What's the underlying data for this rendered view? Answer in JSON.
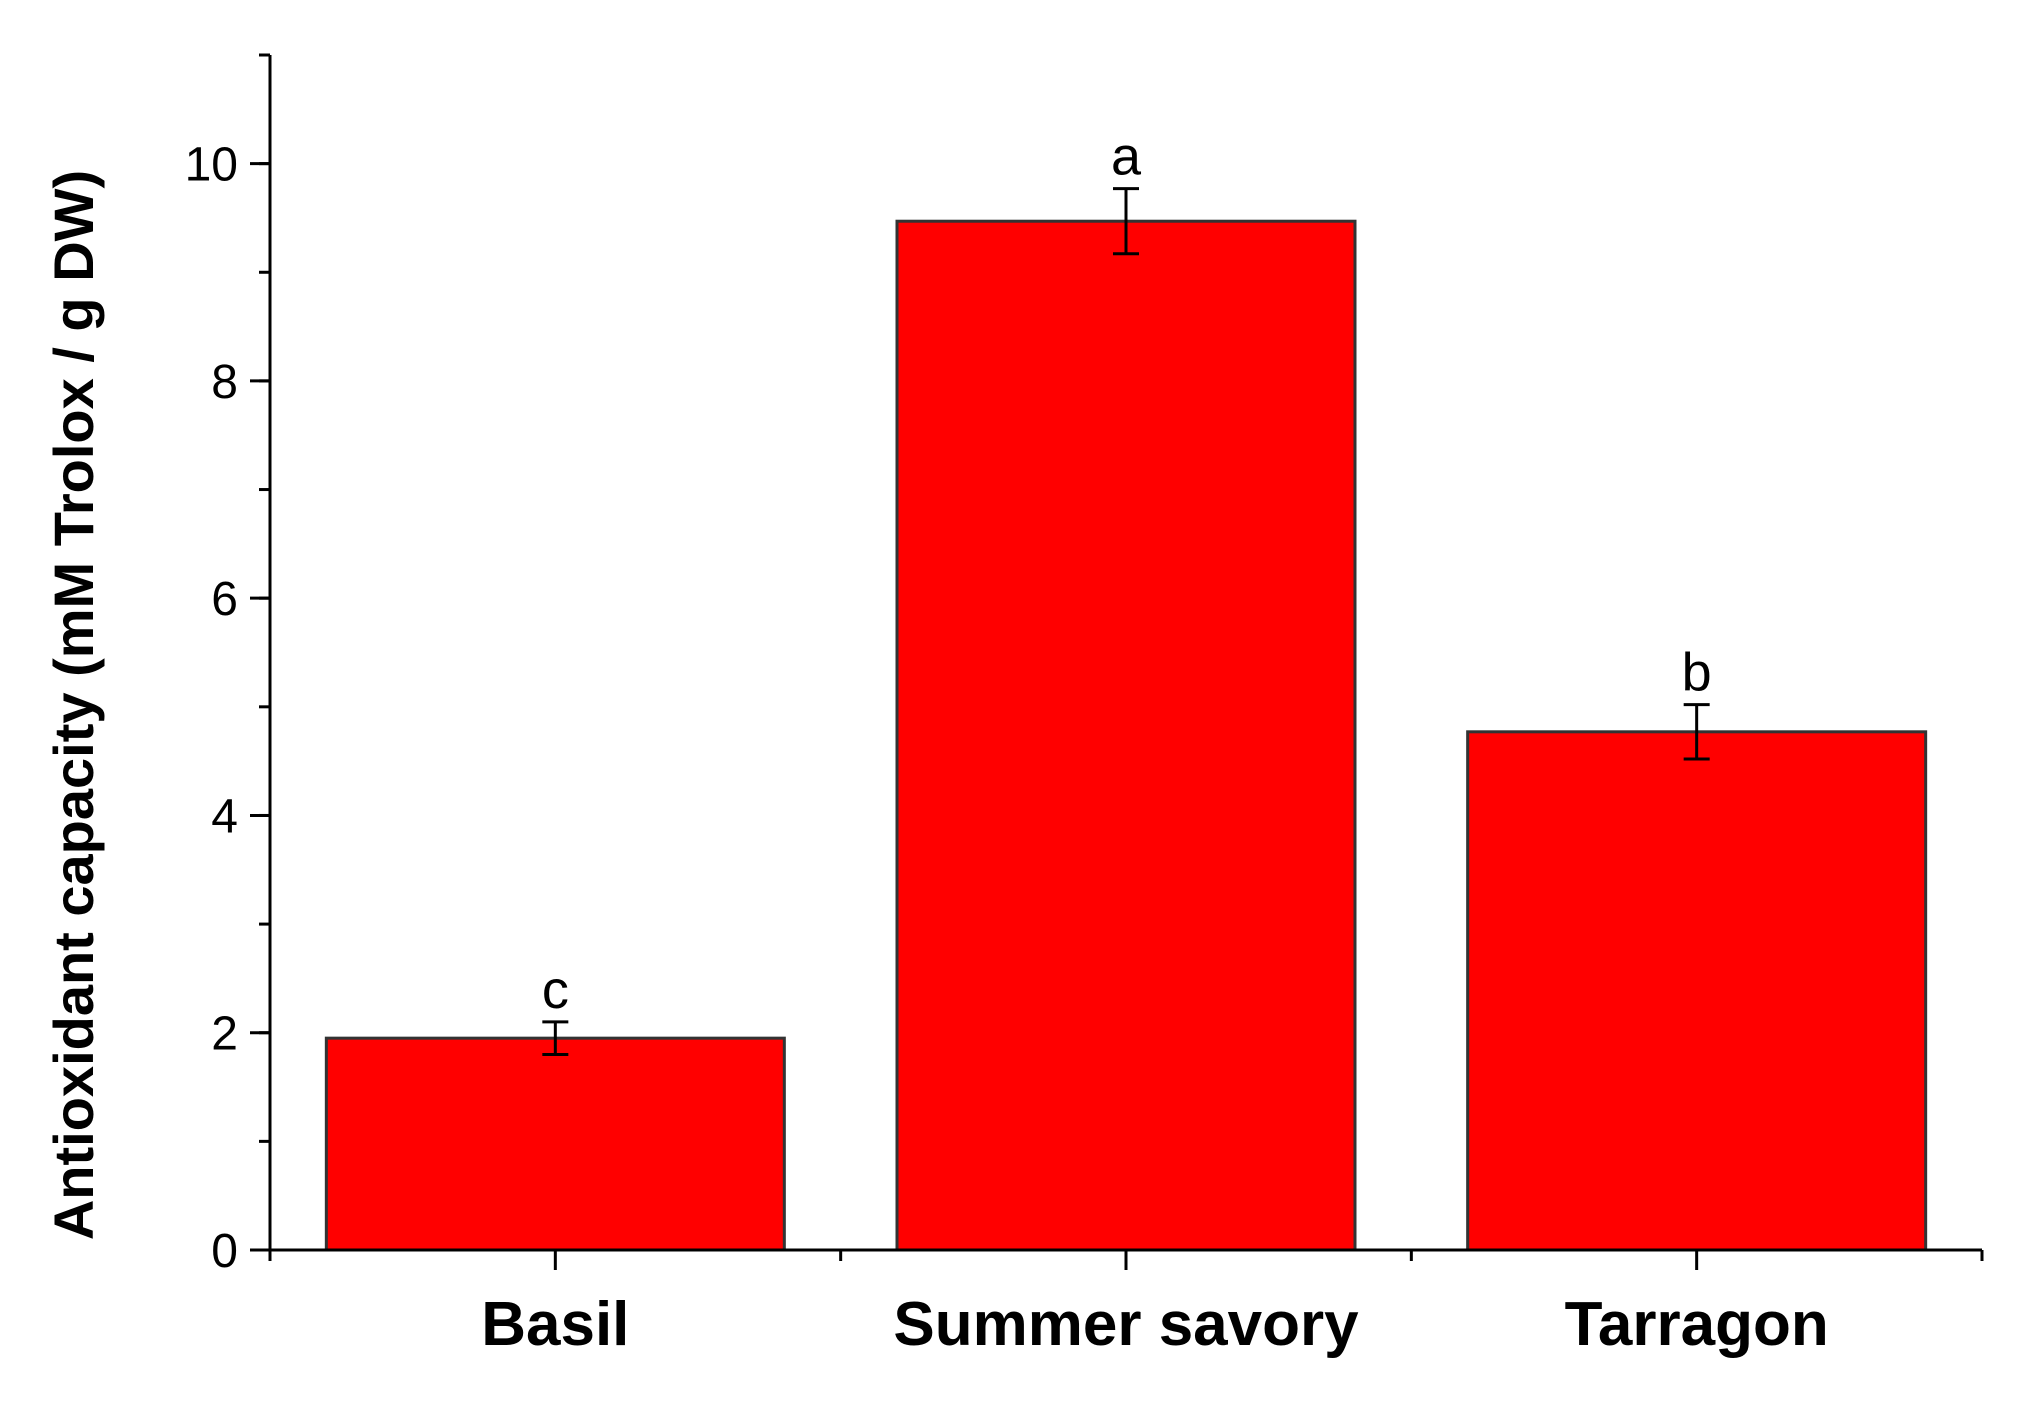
{
  "chart_data": {
    "type": "bar",
    "title": "",
    "xlabel": "",
    "ylabel": "Antioxidant capacity (mM Trolox / g DW)",
    "categories": [
      "Basil",
      "Summer savory",
      "Tarragon"
    ],
    "values": [
      1.95,
      9.47,
      4.77
    ],
    "errors": [
      0.15,
      0.3,
      0.25
    ],
    "significance_letters": [
      "c",
      "a",
      "b"
    ],
    "ylim": [
      0,
      11
    ],
    "yticks": [
      0,
      2,
      4,
      6,
      8,
      10
    ],
    "yminor_step": 1,
    "grid": false,
    "legend": "none",
    "bar_color": "#ff0000",
    "bar_edge_color": "#333333"
  }
}
